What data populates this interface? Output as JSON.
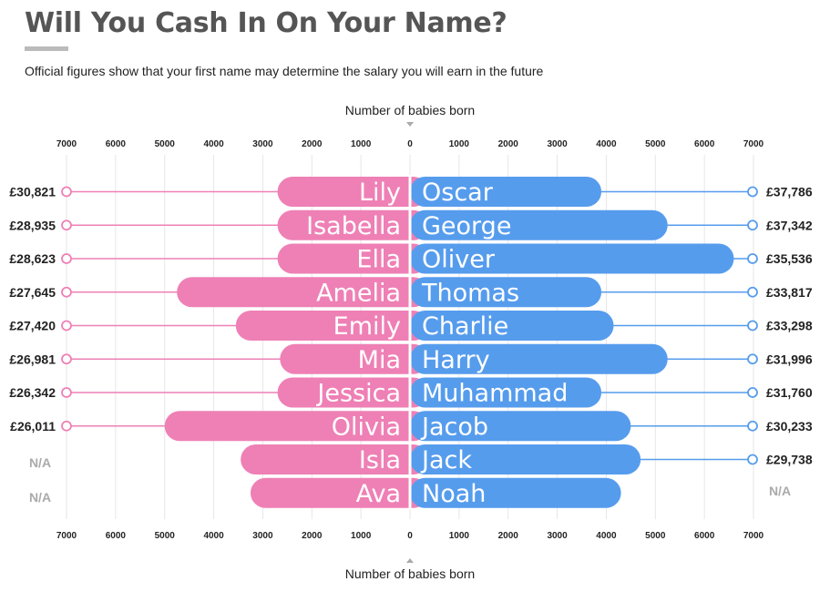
{
  "title": "Will You Cash In On Your Name?",
  "subtitle": "Official figures show that your first name may determine the salary you will earn in the future",
  "colors": {
    "girls": "#ee80b5",
    "boys": "#569ced",
    "grid": "#e6e6e6",
    "tick_text": "#222222",
    "na": "#aaaaaa"
  },
  "chart_data": {
    "type": "bar",
    "orientation": "horizontal-diverging",
    "title": "Will You Cash In On Your Name?",
    "subtitle": "Official figures show that your first name may determine the salary you will earn in the future",
    "xlabel": "Number of babies born",
    "xlim": [
      0,
      7000
    ],
    "tick_labels": [
      "7000",
      "6000",
      "5000",
      "4000",
      "3000",
      "2000",
      "1000",
      "0",
      "1000",
      "2000",
      "3000",
      "4000",
      "5000",
      "6000",
      "7000"
    ],
    "grid": true,
    "girls": {
      "names": [
        "Lily",
        "Isabella",
        "Ella",
        "Amelia",
        "Emily",
        "Mia",
        "Jessica",
        "Olivia",
        "Isla",
        "Ava"
      ],
      "babies": [
        2700,
        2700,
        2700,
        4750,
        3550,
        2650,
        2700,
        5000,
        3450,
        3250
      ],
      "salaries": [
        "£30,821",
        "£28,935",
        "£28,623",
        "£27,645",
        "£27,420",
        "£26,981",
        "£26,342",
        "£26,011",
        "N/A",
        "N/A"
      ]
    },
    "boys": {
      "names": [
        "Oscar",
        "George",
        "Oliver",
        "Thomas",
        "Charlie",
        "Harry",
        "Muhammad",
        "Jacob",
        "Jack",
        "Noah"
      ],
      "babies": [
        3900,
        5250,
        6600,
        3900,
        4150,
        5250,
        3900,
        4500,
        4700,
        4300
      ],
      "salaries": [
        "£37,786",
        "£37,342",
        "£35,536",
        "£33,817",
        "£33,298",
        "£31,996",
        "£31,760",
        "£30,233",
        "£29,738",
        "N/A"
      ]
    }
  }
}
